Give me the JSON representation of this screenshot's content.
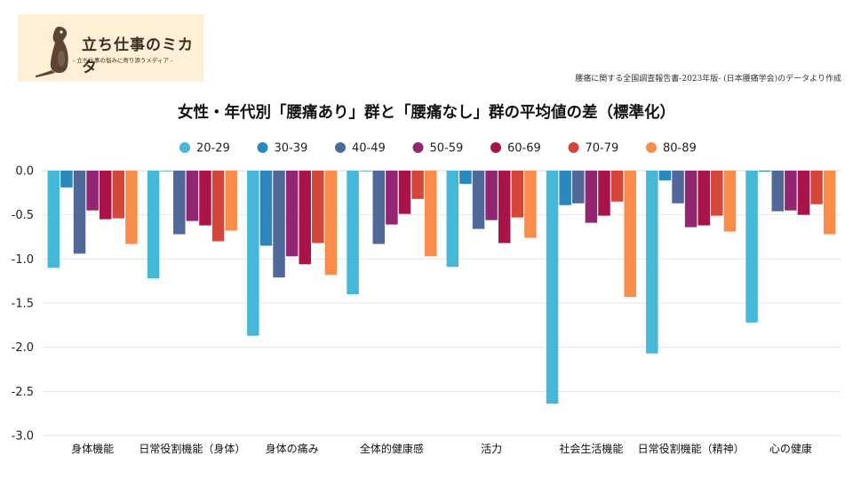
{
  "logo": {
    "title": "立ち仕事のミカタ",
    "subtitle": "- 立ち仕事の悩みに寄り添うメディア -"
  },
  "source_note": "腰痛に関する全国調査報告書-2023年版- (日本腰痛学会)のデータより作成",
  "chart_data": {
    "type": "bar",
    "title": "女性・年代別「腰痛あり」群と「腰痛なし」群の平均値の差（標準化）",
    "xlabel": "",
    "ylabel": "",
    "ylim": [
      -3.0,
      0.0
    ],
    "yticks": [
      "0.0",
      "-0.5",
      "-1.0",
      "-1.5",
      "-2.0",
      "-2.5",
      "-3.0"
    ],
    "ytick_values": [
      0,
      -0.5,
      -1.0,
      -1.5,
      -2.0,
      -2.5,
      -3.0
    ],
    "grid": true,
    "legend_position": "top",
    "categories": [
      "身体機能",
      "日常役割機能（身体）",
      "身体の痛み",
      "全体的健康感",
      "活力",
      "社会生活機能",
      "日常役割機能（精神）",
      "心の健康"
    ],
    "series": [
      {
        "name": "20-29",
        "color": "#45b8d8",
        "values": [
          -1.1,
          -1.22,
          -1.87,
          -1.4,
          -1.09,
          -2.64,
          -2.07,
          -1.72
        ]
      },
      {
        "name": "30-39",
        "color": "#2b88be",
        "values": [
          -0.19,
          0.0,
          -0.85,
          0.0,
          -0.15,
          -0.39,
          -0.11,
          -0.01
        ]
      },
      {
        "name": "40-49",
        "color": "#51689a",
        "values": [
          -0.94,
          -0.72,
          -1.21,
          -0.83,
          -0.66,
          -0.37,
          -0.37,
          -0.46
        ]
      },
      {
        "name": "50-59",
        "color": "#922672",
        "values": [
          -0.45,
          -0.57,
          -0.97,
          -0.61,
          -0.56,
          -0.59,
          -0.64,
          -0.45
        ]
      },
      {
        "name": "60-69",
        "color": "#a8134a",
        "values": [
          -0.55,
          -0.62,
          -1.06,
          -0.49,
          -0.82,
          -0.51,
          -0.62,
          -0.5
        ]
      },
      {
        "name": "70-79",
        "color": "#d34639",
        "values": [
          -0.54,
          -0.8,
          -0.82,
          -0.32,
          -0.53,
          -0.35,
          -0.51,
          -0.38
        ]
      },
      {
        "name": "80-89",
        "color": "#fa8c4a",
        "values": [
          -0.83,
          -0.68,
          -1.18,
          -0.97,
          -0.76,
          -1.43,
          -0.69,
          -0.72
        ]
      }
    ]
  }
}
